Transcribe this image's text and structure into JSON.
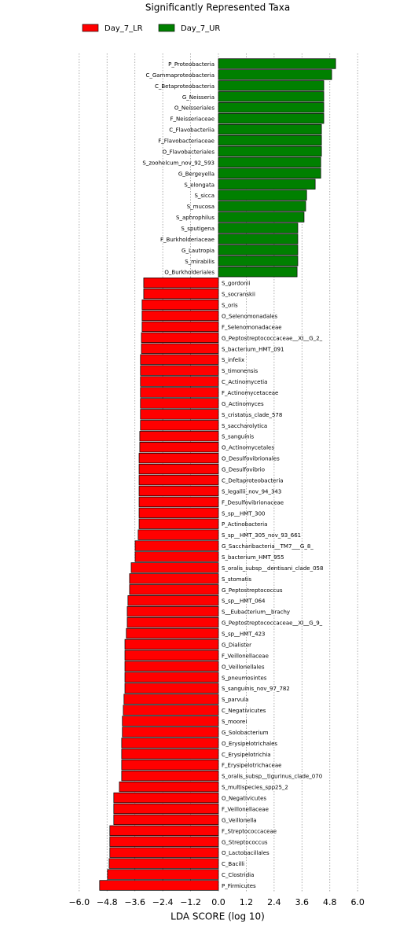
{
  "chart_data": {
    "type": "barh",
    "title": "Significantly Represented Taxa",
    "xlabel": "LDA SCORE (log 10)",
    "categories": [
      "P_Proteobacteria",
      "C_Gammaproteobacteria",
      "C_Betaproteobacteria",
      "G_Neisseria",
      "O_Neisseriales",
      "F_Neisseriaceae",
      "C_Flavobacteriia",
      "F_Flavobacteriaceae",
      "O_Flavobacteriales",
      "S_zoohelcum_nov_92_593",
      "G_Bergeyella",
      "S_elongata",
      "S_sicca",
      "S_mucosa",
      "S_aphrophilus",
      "S_sputigena",
      "F_Burkholderiaceae",
      "G_Lautropia",
      "S_mirabilis",
      "O_Burkholderiales",
      "S_gordonii",
      "S_socranskii",
      "S_oris",
      "O_Selenomonadales",
      "F_Selenomonadaceae",
      "G_Peptostreptococcaceae__XI__G_2_",
      "S_bacterium_HMT_091",
      "S_infelix",
      "S_timonensis",
      "C_Actinomycetia",
      "F_Actinomycetaceae",
      "G_Actinomyces",
      "S_cristatus_clade_578",
      "S_saccharolytica",
      "S_sanguinis",
      "O_Actinomycetales",
      "O_Desulfovibrionales",
      "G_Desulfovibrio",
      "C_Deltaproteobacteria",
      "S_legallii_nov_94_343",
      "F_Desulfovibrionaceae",
      "S_sp__HMT_300",
      "P_Actinobacteria",
      "S_sp__HMT_305_nov_93_661",
      "G_Saccharibacteria__TM7___G_8_",
      "S_bacterium_HMT_955",
      "S_oralis_subsp__dentisani_clade_058",
      "S_stomatis",
      "G_Peptostreptococcus",
      "S_sp__HMT_064",
      "S__Eubacterium__brachy",
      "G_Peptostreptococcaceae__XI__G_9_",
      "S_sp__HMT_423",
      "G_Dialister",
      "F_Veillonellaceae",
      "O_Veillonellales",
      "S_pneumosintes",
      "S_sanguinis_nov_97_782",
      "S_parvula",
      "C_Negativicutes",
      "S_moorei",
      "G_Solobacterium",
      "O_Erysipelotrichales",
      "C_Erysipelotrichia",
      "F_Erysipelotrichaceae",
      "S_oralis_subsp__tigurinus_clade_070",
      "S_multispecies_spp25_2",
      "O_Negativicutes",
      "F_Veillonellaceae",
      "G_Veillonella",
      "F_Streptococcaceae",
      "G_Streptococcus",
      "O_Lactobacillales",
      "C_Bacilli",
      "C_Clostridia",
      "P_Firmicutes"
    ],
    "series": [
      {
        "name": "Day_7_LR",
        "color": "#ff0000",
        "values": [
          null,
          null,
          null,
          null,
          null,
          null,
          null,
          null,
          null,
          null,
          null,
          null,
          null,
          null,
          null,
          null,
          null,
          null,
          null,
          null,
          -3.22,
          -3.22,
          -3.29,
          -3.29,
          -3.29,
          -3.32,
          -3.32,
          -3.36,
          -3.36,
          -3.36,
          -3.36,
          -3.36,
          -3.36,
          -3.36,
          -3.39,
          -3.39,
          -3.42,
          -3.42,
          -3.42,
          -3.42,
          -3.42,
          -3.42,
          -3.42,
          -3.46,
          -3.59,
          -3.59,
          -3.76,
          -3.83,
          -3.83,
          -3.9,
          -3.93,
          -3.93,
          -3.97,
          -4.03,
          -4.03,
          -4.03,
          -4.03,
          -4.03,
          -4.07,
          -4.1,
          -4.14,
          -4.14,
          -4.17,
          -4.17,
          -4.17,
          -4.17,
          -4.27,
          -4.51,
          -4.51,
          -4.51,
          -4.68,
          -4.68,
          -4.68,
          -4.71,
          -4.78,
          -5.12
        ]
      },
      {
        "name": "Day_7_UR",
        "color": "#008000",
        "values": [
          5.05,
          4.88,
          4.54,
          4.54,
          4.54,
          4.54,
          4.44,
          4.44,
          4.44,
          4.41,
          4.41,
          4.17,
          3.8,
          3.76,
          3.69,
          3.42,
          3.42,
          3.42,
          3.42,
          3.39,
          null,
          null,
          null,
          null,
          null,
          null,
          null,
          null,
          null,
          null,
          null,
          null,
          null,
          null,
          null,
          null,
          null,
          null,
          null,
          null,
          null,
          null,
          null,
          null,
          null,
          null,
          null,
          null,
          null,
          null,
          null,
          null,
          null,
          null,
          null,
          null,
          null,
          null,
          null,
          null,
          null,
          null,
          null,
          null,
          null,
          null,
          null,
          null,
          null,
          null,
          null,
          null,
          null,
          null,
          null,
          null
        ]
      }
    ],
    "xlim": [
      -6.4,
      6.4
    ],
    "xticks": [
      {
        "value": -6,
        "label": "−6.0"
      },
      {
        "value": -4.8,
        "label": "−4.8"
      },
      {
        "value": -3.6,
        "label": "−3.6"
      },
      {
        "value": -2.4,
        "label": "−2.4"
      },
      {
        "value": -1.2,
        "label": "−1.2"
      },
      {
        "value": 0,
        "label": "0.0"
      },
      1.2,
      2.4,
      3.6,
      4.8,
      {
        "value": 6,
        "label": "6.0"
      }
    ],
    "grid": true
  }
}
